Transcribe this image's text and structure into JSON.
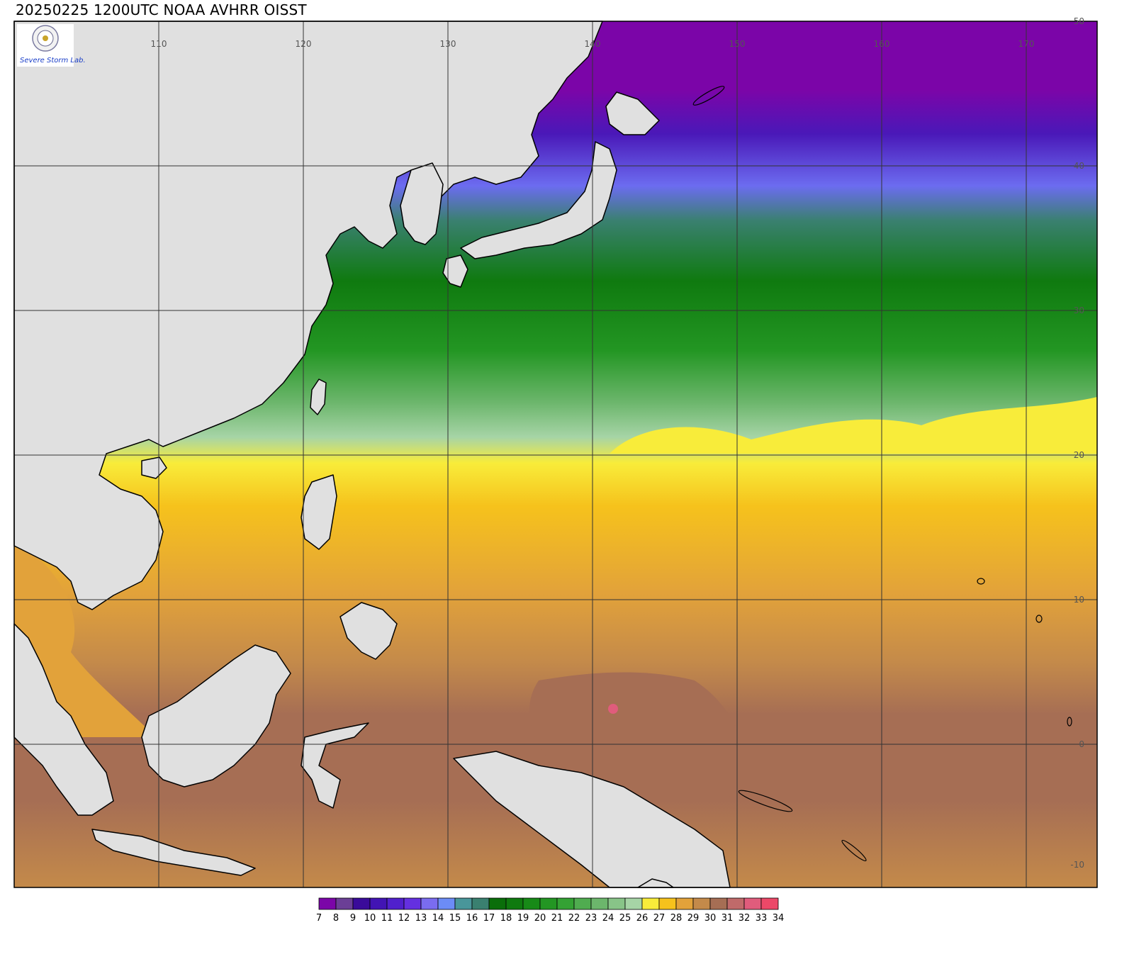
{
  "title": "20250225 1200UTC NOAA AVHRR OISST",
  "logo": {
    "text": "Severe Storm Lab."
  },
  "map": {
    "lon_range": [
      100,
      175
    ],
    "lat_range": [
      -10,
      50
    ],
    "lon_ticks": [
      "110",
      "120",
      "130",
      "140",
      "150",
      "160",
      "170"
    ],
    "lat_ticks": [
      "50",
      "40",
      "30",
      "20",
      "10",
      "0",
      "-10"
    ],
    "land_color": "#e0e0e0",
    "grid": true
  },
  "colorbar": {
    "labels": [
      "7",
      "8",
      "9",
      "10",
      "11",
      "12",
      "13",
      "14",
      "15",
      "16",
      "17",
      "18",
      "19",
      "20",
      "21",
      "22",
      "23",
      "24",
      "25",
      "26",
      "27",
      "28",
      "29",
      "30",
      "31",
      "32",
      "33",
      "34"
    ],
    "colors": [
      "#7b05a8",
      "#6b3f96",
      "#3a0b9a",
      "#4214b4",
      "#5020cc",
      "#6430e0",
      "#7a6cf0",
      "#6c8cf6",
      "#49969a",
      "#3a8070",
      "#0a6e0a",
      "#0f7a0f",
      "#178a17",
      "#239623",
      "#34a234",
      "#50ac50",
      "#6cb66c",
      "#88c488",
      "#a6d4a6",
      "#f8ec3a",
      "#f6c21c",
      "#e2a23a",
      "#c48a4a",
      "#a66e54",
      "#c06a6a",
      "#e05c7c",
      "#ec4868",
      "#d83a46"
    ]
  }
}
